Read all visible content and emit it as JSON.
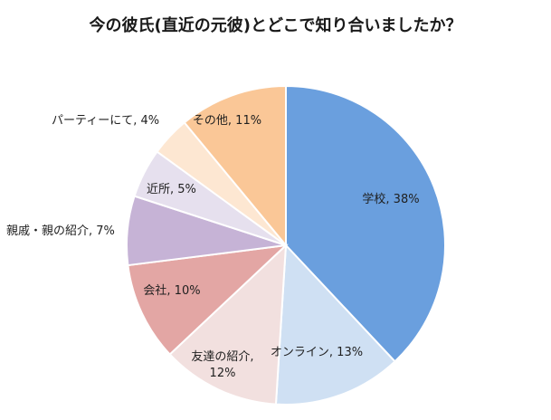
{
  "chart_data": {
    "type": "pie",
    "title": "今の彼氏(直近の元彼)とどこで知り合いましたか？",
    "slices": [
      {
        "label": "学校, 38%",
        "value": 38,
        "color": "#6a9fde"
      },
      {
        "label": "オンライン, 13%",
        "value": 13,
        "color": "#cfe0f3"
      },
      {
        "label": "友達の紹介, 12%",
        "value": 12,
        "color": "#f2e0df"
      },
      {
        "label": "会社, 10%",
        "value": 10,
        "color": "#e3a6a4"
      },
      {
        "label": "親戚・親の紹介, 7%",
        "value": 7,
        "color": "#c6b3d6"
      },
      {
        "label": "近所, 5%",
        "value": 5,
        "color": "#e6e0ee"
      },
      {
        "label": "パーティーにて, 4%",
        "value": 4,
        "color": "#fde7d2"
      },
      {
        "label": "その他, 11%",
        "value": 11,
        "color": "#fac797"
      }
    ]
  }
}
